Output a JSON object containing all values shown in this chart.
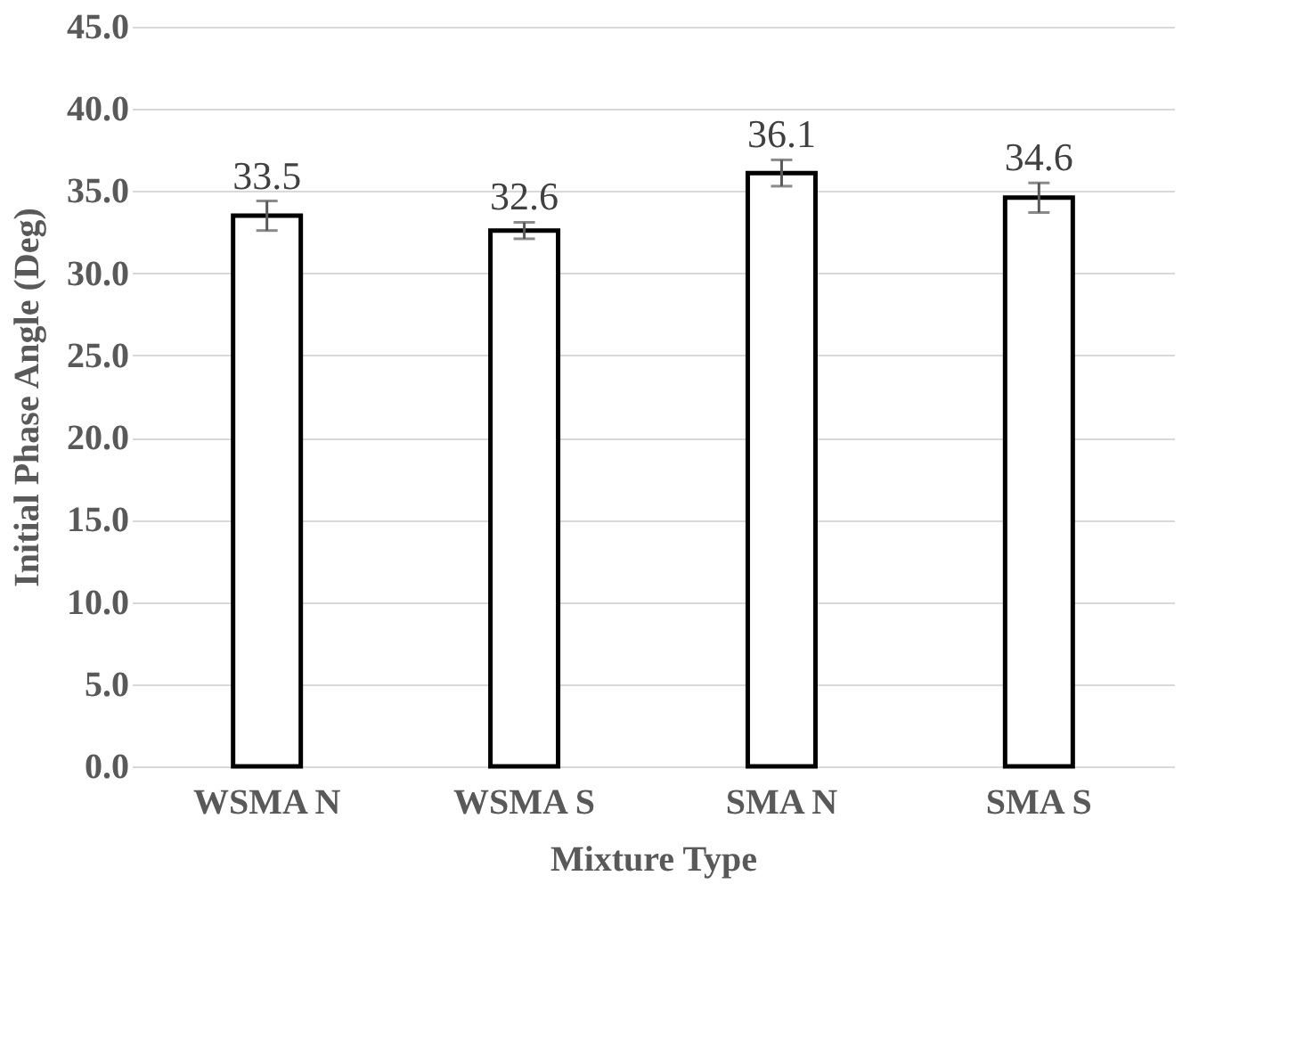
{
  "chart_data": {
    "type": "bar",
    "xlabel": "Mixture Type",
    "ylabel": "Initial Phase Angle  (Deg)",
    "categories": [
      "WSMA N",
      "WSMA S",
      "SMA N",
      "SMA S"
    ],
    "values": [
      33.5,
      32.6,
      36.1,
      34.6
    ],
    "errors": [
      0.9,
      0.5,
      0.8,
      0.9
    ],
    "color": "#ffffff",
    "ylim": [
      0,
      45
    ],
    "yticks": [
      {
        "value": 0,
        "label": "0.0"
      },
      {
        "value": 5,
        "label": "5.0"
      },
      {
        "value": 10,
        "label": "10.0"
      },
      {
        "value": 15,
        "label": "15.0"
      },
      {
        "value": 20,
        "label": "20.0"
      },
      {
        "value": 25,
        "label": "25.0"
      },
      {
        "value": 30,
        "label": "30.0"
      },
      {
        "value": 35,
        "label": "35.0"
      },
      {
        "value": 40,
        "label": "40.0"
      },
      {
        "value": 45,
        "label": "45.0"
      }
    ],
    "grid": "y",
    "data_labels": true
  }
}
